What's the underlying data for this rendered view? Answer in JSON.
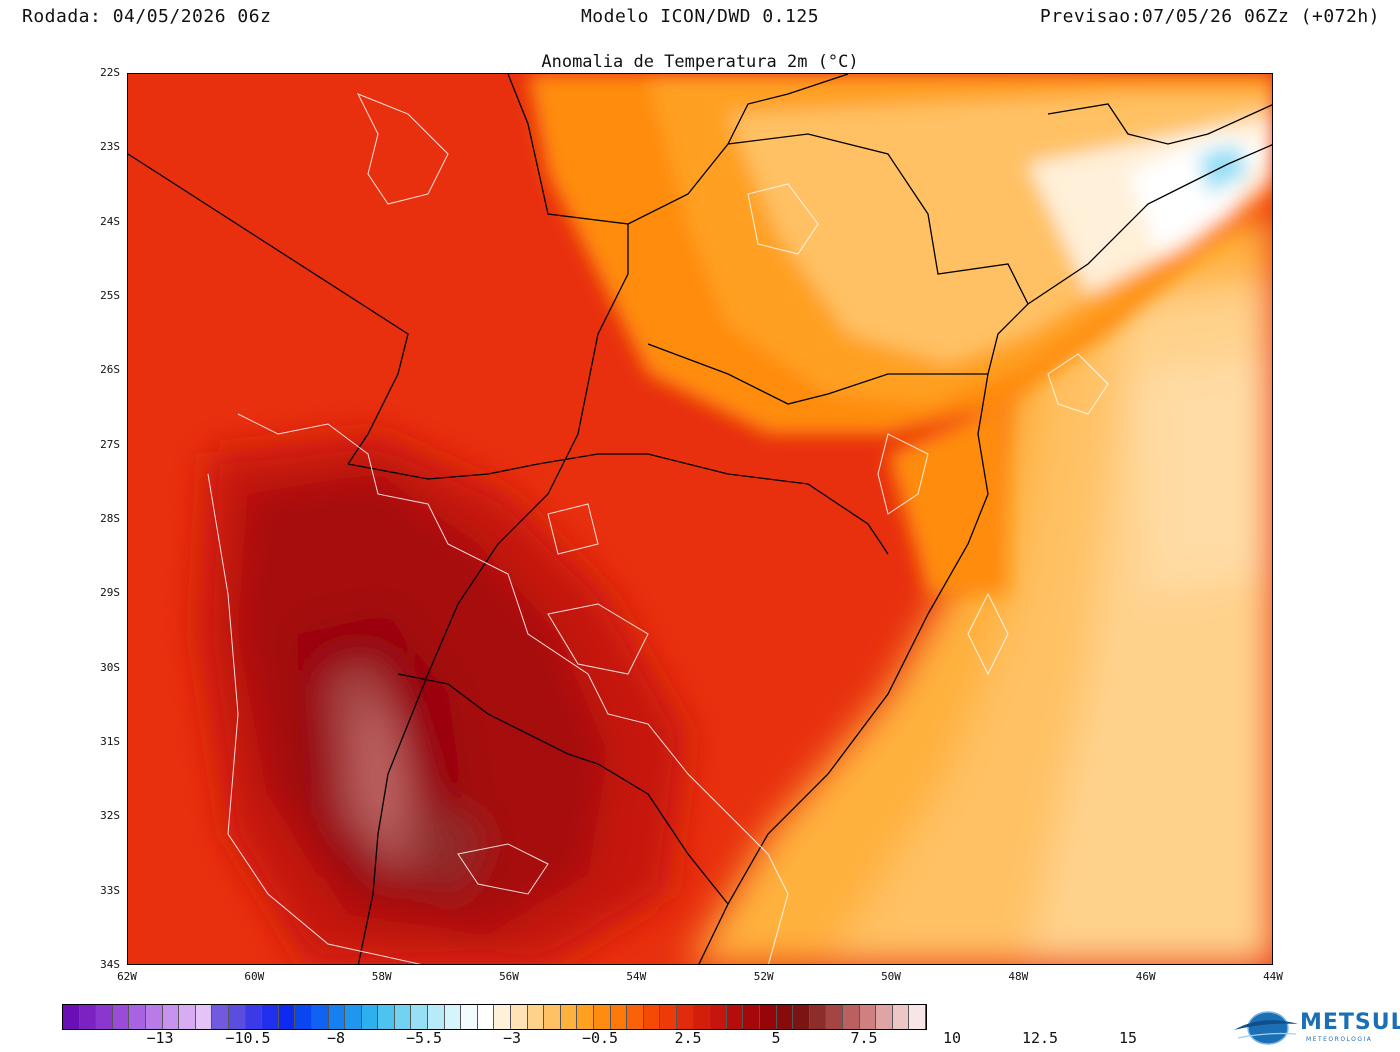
{
  "header": {
    "run": "Rodada: 04/05/2026 06z",
    "model": "Modelo ICON/DWD 0.125",
    "forecast": "Previsao:07/05/26 06Zz (+072h)"
  },
  "title": "Anomalia de Temperatura 2m (°C)",
  "map": {
    "lat_labels": [
      "22S",
      "23S",
      "24S",
      "25S",
      "26S",
      "27S",
      "28S",
      "29S",
      "30S",
      "31S",
      "32S",
      "33S",
      "34S"
    ],
    "lon_labels": [
      "62W",
      "60W",
      "58W",
      "56W",
      "54W",
      "52W",
      "50W",
      "48W",
      "46W",
      "44W"
    ],
    "lat_range": [
      -34,
      -22
    ],
    "lon_range": [
      -62,
      -44
    ]
  },
  "colorbar": {
    "labels": [
      "−13",
      "−10.5",
      "−8",
      "−5.5",
      "−3",
      "−0.5",
      "2.5",
      "5",
      "7.5",
      "10",
      "12.5",
      "15"
    ],
    "colors": [
      "#6a0fb5",
      "#7a22c2",
      "#8a36cf",
      "#9a4bd9",
      "#a962e1",
      "#b97be8",
      "#c893ee",
      "#d7acf3",
      "#e4c3f7",
      "#6f5ae0",
      "#5a4de0",
      "#3a3ae6",
      "#2030ec",
      "#0f2af0",
      "#0a45f2",
      "#0f62f2",
      "#1780f0",
      "#2096ee",
      "#2fb0ee",
      "#4ec3f0",
      "#72d2f2",
      "#96dff5",
      "#b7ebf8",
      "#d6f5fb",
      "#f2fbfd",
      "#ffffff",
      "#fff0d9",
      "#ffe2b5",
      "#ffd28c",
      "#ffc164",
      "#ffb13e",
      "#ffa020",
      "#ff8c10",
      "#ff780a",
      "#fb6208",
      "#f54a06",
      "#ee3a08",
      "#e22a0c",
      "#d41e0c",
      "#c6150c",
      "#b60d0c",
      "#a6070a",
      "#960508",
      "#880a0a",
      "#7c1414",
      "#8e2c2c",
      "#a54444",
      "#bb6060",
      "#cf8080",
      "#e0a4a4",
      "#eec6c6",
      "#f8e6e6"
    ]
  },
  "logo": {
    "name": "METSUL",
    "tagline": "METEOROLOGIA"
  }
}
